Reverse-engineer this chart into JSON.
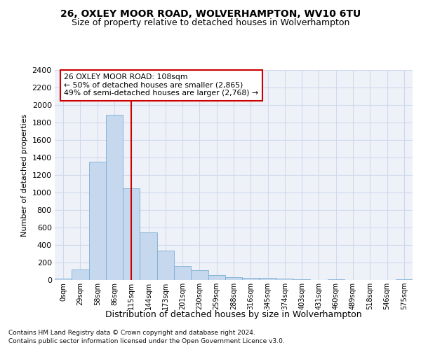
{
  "title1": "26, OXLEY MOOR ROAD, WOLVERHAMPTON, WV10 6TU",
  "title2": "Size of property relative to detached houses in Wolverhampton",
  "xlabel": "Distribution of detached houses by size in Wolverhampton",
  "ylabel": "Number of detached properties",
  "bar_labels": [
    "0sqm",
    "29sqm",
    "58sqm",
    "86sqm",
    "115sqm",
    "144sqm",
    "173sqm",
    "201sqm",
    "230sqm",
    "259sqm",
    "288sqm",
    "316sqm",
    "345sqm",
    "374sqm",
    "403sqm",
    "431sqm",
    "460sqm",
    "489sqm",
    "518sqm",
    "546sqm",
    "575sqm"
  ],
  "bar_values": [
    15,
    120,
    1350,
    1890,
    1045,
    545,
    335,
    160,
    110,
    60,
    35,
    28,
    25,
    20,
    8,
    0,
    8,
    0,
    0,
    0,
    10
  ],
  "bar_color": "#c5d8ee",
  "bar_edgecolor": "#7aafd4",
  "bar_linewidth": 0.6,
  "vline_x": 4.0,
  "vline_color": "#cc0000",
  "vline_linewidth": 1.5,
  "annotation_line1": "26 OXLEY MOOR ROAD: 108sqm",
  "annotation_line2": "← 50% of detached houses are smaller (2,865)",
  "annotation_line3": "49% of semi-detached houses are larger (2,768) →",
  "annotation_box_edgecolor": "#cc0000",
  "annotation_fill": "white",
  "ylim_max": 2400,
  "ytick_step": 200,
  "grid_color": "#d0d8ec",
  "bg_color": "#eef2f8",
  "footer1": "Contains HM Land Registry data © Crown copyright and database right 2024.",
  "footer2": "Contains public sector information licensed under the Open Government Licence v3.0.",
  "title1_fontsize": 10,
  "title2_fontsize": 9,
  "ylabel_fontsize": 8,
  "xlabel_fontsize": 9,
  "ytick_fontsize": 8,
  "xtick_fontsize": 7,
  "footer_fontsize": 6.5
}
